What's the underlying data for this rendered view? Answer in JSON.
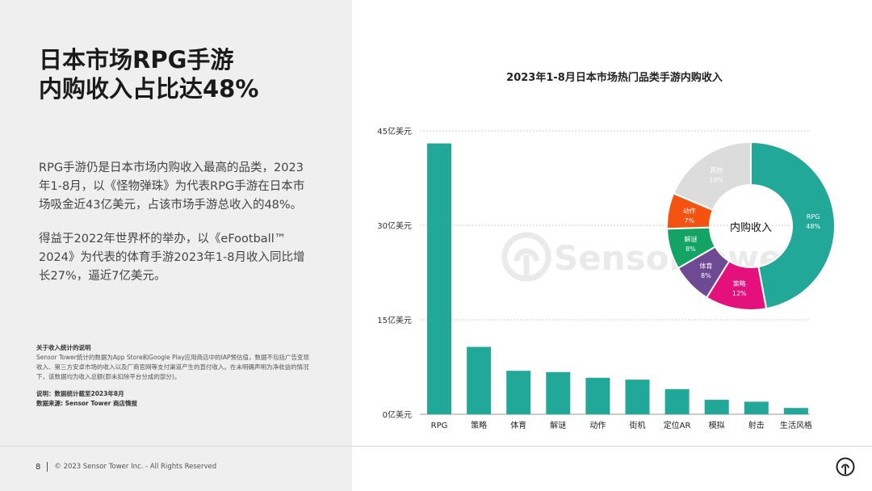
{
  "headline": {
    "line1": "日本市场RPG手游",
    "line2": "内购收入占比达48%"
  },
  "body": {
    "paragraph1": "RPG手游仍是日本市场内购收入最高的品类，2023年1-8月，以《怪物弹珠》为代表RPG手游在日本市场吸金近43亿美元，占该市场手游总收入的48%。",
    "paragraph2": "得益于2022年世界杯的举办，以《eFootball™ 2024》为代表的体育手游2023年1-8月收入同比增长27%，逼近7亿美元。"
  },
  "notes": {
    "title": "关于收入统计的说明",
    "text": "Sensor Tower统计的数据为App Store和Google Play应用商店中的IAP预估值，数据不包括广告变现收入、第三方安卓市场的收入以及厂商官网等支付渠道产生的直付收入。在未明确声明为净收益的情况下，该数据均为收入总额(即未扣除平台分成的部分)。",
    "date_note": "说明：数据统计截至2023年8月",
    "source": "数据来源: Sensor Tower 商店情报"
  },
  "footer": {
    "page": "8",
    "copyright": "© 2023 Sensor Tower Inc. - All Rights Reserved"
  },
  "watermark": "SensorTower",
  "colors": {
    "teal": "#22a898",
    "pink": "#e4107c",
    "purple": "#6e4a93",
    "green": "#13a364",
    "orange": "#f45210",
    "gray": "#dcdcdc",
    "panel": "#efefef"
  },
  "chart_data": [
    {
      "type": "bar",
      "title": "2023年1-8月日本市场热门品类手游内购收入",
      "categories": [
        "RPG",
        "策略",
        "体育",
        "解谜",
        "动作",
        "街机",
        "定位AR",
        "模拟",
        "射击",
        "生活风格"
      ],
      "values": [
        43.0,
        10.7,
        6.9,
        6.7,
        5.8,
        5.5,
        4.0,
        2.3,
        2.0,
        1.0
      ],
      "unit": "亿美元",
      "ylim": [
        0,
        45
      ],
      "yticks": [
        0,
        15,
        30,
        45
      ],
      "ytick_labels": [
        "0亿美元",
        "15亿美元",
        "30亿美元",
        "45亿美元"
      ],
      "grid": true,
      "color": "#22a898"
    },
    {
      "type": "pie",
      "donut": true,
      "center_label": "内购收入",
      "slices": [
        {
          "label": "RPG",
          "value": 48,
          "display": "48%",
          "color": "#22a898"
        },
        {
          "label": "策略",
          "value": 12,
          "display": "12%",
          "color": "#e4107c"
        },
        {
          "label": "体育",
          "value": 8,
          "display": "8%",
          "color": "#6e4a93"
        },
        {
          "label": "解谜",
          "value": 8,
          "display": "8%",
          "color": "#13a364"
        },
        {
          "label": "动作",
          "value": 7,
          "display": "7%",
          "color": "#f45210"
        },
        {
          "label": "其他",
          "value": 19,
          "display": "19%",
          "color": "#dcdcdc"
        }
      ]
    }
  ]
}
